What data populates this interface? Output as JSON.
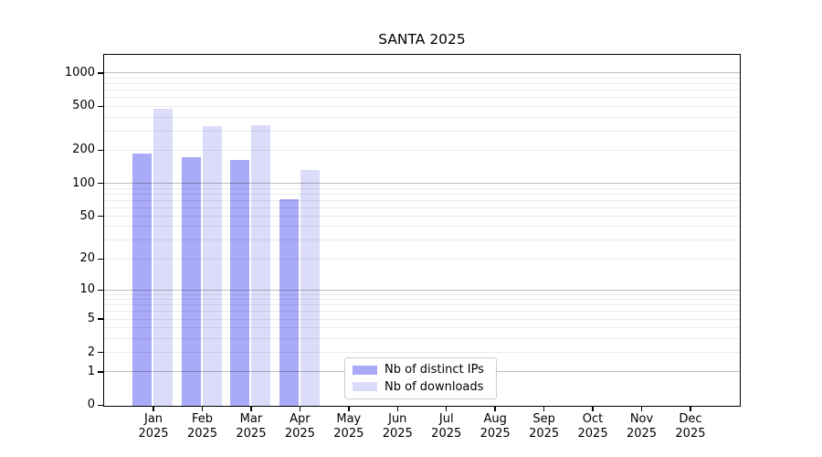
{
  "title": "SANTA 2025",
  "chart_data": {
    "type": "bar",
    "title": "SANTA 2025",
    "scale": "log1p",
    "categories": [
      "Jan",
      "Feb",
      "Mar",
      "Apr",
      "May",
      "Jun",
      "Jul",
      "Aug",
      "Sep",
      "Oct",
      "Nov",
      "Dec"
    ],
    "category_year": "2025",
    "series": [
      {
        "name": "Nb of distinct IPs",
        "color": "#a9aaf8",
        "values": [
          190,
          175,
          165,
          72,
          0,
          0,
          0,
          0,
          0,
          0,
          0,
          0
        ]
      },
      {
        "name": "Nb of downloads",
        "color": "#dbdcfa",
        "values": [
          480,
          335,
          345,
          135,
          0,
          0,
          0,
          0,
          0,
          0,
          0,
          0
        ]
      }
    ],
    "xlabel": "",
    "ylabel": "",
    "ylim": [
      0,
      1447
    ],
    "y_ticks": [
      0,
      1,
      2,
      5,
      10,
      20,
      50,
      100,
      200,
      500,
      1000
    ],
    "major_grid": [
      1,
      10,
      100,
      1000
    ],
    "minor_grid": [
      2,
      3,
      4,
      5,
      6,
      7,
      8,
      9,
      20,
      30,
      40,
      50,
      60,
      70,
      80,
      90,
      200,
      300,
      400,
      500,
      600,
      700,
      800,
      900
    ],
    "grid": "horizontal",
    "legend_position": "lower center"
  },
  "colors": {
    "bar_distinct_ips": "#a9aaf8",
    "bar_downloads": "#dbdcfa",
    "grid_major": "rgba(0,0,0,0.26)",
    "grid_minor": "rgba(0,0,0,0.08)",
    "spine": "#000000",
    "legend_border": "#cccccc",
    "text": "#000000"
  }
}
